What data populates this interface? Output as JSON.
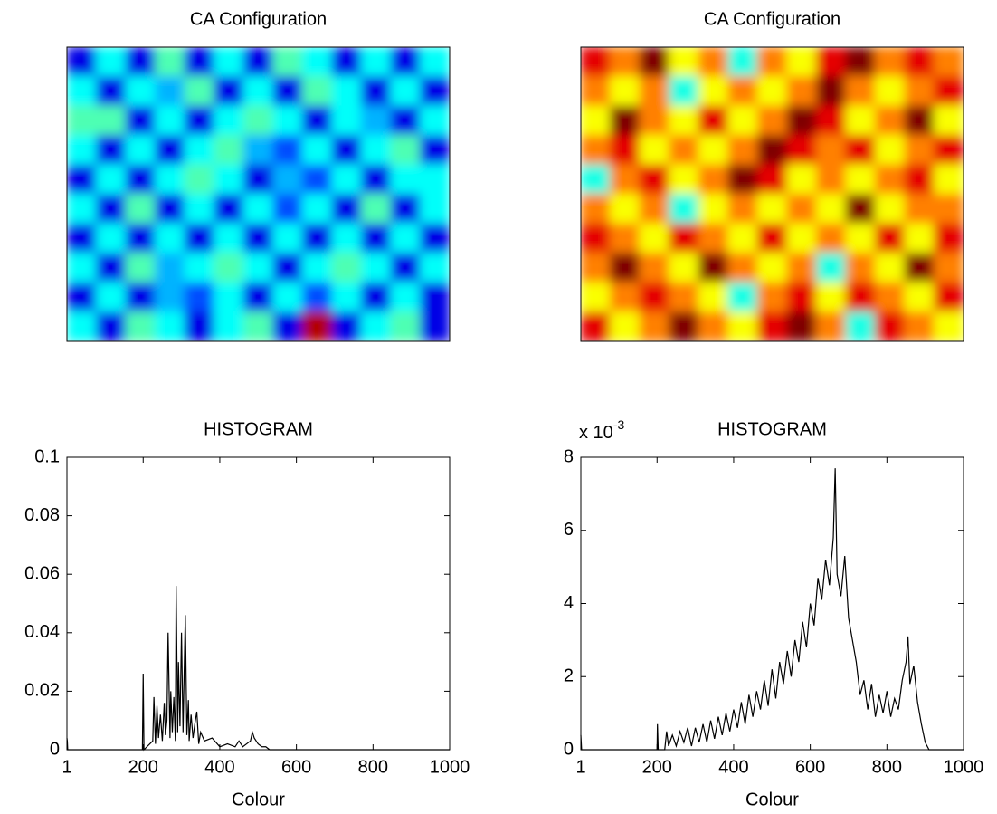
{
  "chart_data": [
    {
      "type": "image",
      "title": "CA Configuration",
      "colormap": "jet",
      "clim": [
        0,
        1
      ],
      "values": [
        [
          0.1,
          0.38,
          0.1,
          0.45,
          0.1,
          0.38,
          0.1,
          0.45,
          0.38,
          0.1,
          0.38,
          0.1,
          0.38
        ],
        [
          0.38,
          0.1,
          0.38,
          0.3,
          0.45,
          0.1,
          0.38,
          0.1,
          0.45,
          0.38,
          0.1,
          0.38,
          0.1
        ],
        [
          0.45,
          0.45,
          0.1,
          0.38,
          0.1,
          0.38,
          0.45,
          0.38,
          0.1,
          0.38,
          0.3,
          0.1,
          0.38
        ],
        [
          0.38,
          0.1,
          0.38,
          0.1,
          0.38,
          0.45,
          0.3,
          0.2,
          0.38,
          0.1,
          0.38,
          0.45,
          0.1
        ],
        [
          0.1,
          0.38,
          0.1,
          0.38,
          0.45,
          0.38,
          0.1,
          0.3,
          0.2,
          0.38,
          0.1,
          0.38,
          0.38
        ],
        [
          0.38,
          0.1,
          0.45,
          0.1,
          0.38,
          0.1,
          0.38,
          0.2,
          0.38,
          0.1,
          0.45,
          0.1,
          0.38
        ],
        [
          0.1,
          0.38,
          0.1,
          0.38,
          0.1,
          0.38,
          0.1,
          0.38,
          0.1,
          0.38,
          0.1,
          0.38,
          0.1
        ],
        [
          0.38,
          0.1,
          0.45,
          0.3,
          0.38,
          0.45,
          0.38,
          0.1,
          0.38,
          0.45,
          0.38,
          0.1,
          0.38
        ],
        [
          0.1,
          0.38,
          0.1,
          0.3,
          0.2,
          0.38,
          0.1,
          0.38,
          0.2,
          0.38,
          0.1,
          0.38,
          0.1
        ],
        [
          0.38,
          0.1,
          0.45,
          0.38,
          0.1,
          0.38,
          0.45,
          0.1,
          0.95,
          0.1,
          0.38,
          0.45,
          0.1
        ]
      ]
    },
    {
      "type": "image",
      "title": "CA Configuration",
      "colormap": "jet",
      "clim": [
        0,
        1
      ],
      "values": [
        [
          0.9,
          0.75,
          1,
          0.62,
          0.75,
          0.4,
          0.75,
          0.62,
          0.9,
          1,
          0.75,
          0.9,
          0.75
        ],
        [
          0.75,
          0.62,
          0.75,
          0.4,
          0.62,
          0.75,
          0.62,
          0.75,
          1,
          0.75,
          0.62,
          0.75,
          0.9
        ],
        [
          0.62,
          1,
          0.75,
          0.62,
          0.9,
          0.62,
          0.75,
          1,
          0.9,
          0.62,
          0.75,
          1,
          0.62
        ],
        [
          0.75,
          0.9,
          0.62,
          0.75,
          0.62,
          0.75,
          1,
          0.9,
          0.75,
          0.9,
          0.62,
          0.75,
          0.9
        ],
        [
          0.4,
          0.75,
          0.9,
          0.62,
          0.75,
          1,
          0.9,
          0.62,
          0.75,
          0.62,
          0.75,
          0.9,
          0.62
        ],
        [
          0.75,
          0.62,
          0.75,
          0.4,
          0.62,
          0.75,
          0.62,
          0.75,
          0.62,
          1,
          0.62,
          0.75,
          0.75
        ],
        [
          0.9,
          0.75,
          0.62,
          0.9,
          0.75,
          0.62,
          0.9,
          0.62,
          0.75,
          0.62,
          0.9,
          0.62,
          0.9
        ],
        [
          0.75,
          1,
          0.75,
          0.62,
          1,
          0.75,
          0.62,
          0.75,
          0.4,
          0.75,
          0.62,
          1,
          0.75
        ],
        [
          0.62,
          0.75,
          0.9,
          0.75,
          0.62,
          0.4,
          0.75,
          0.9,
          0.62,
          0.9,
          0.75,
          0.62,
          0.9
        ],
        [
          0.9,
          0.62,
          0.75,
          1,
          0.75,
          0.62,
          0.9,
          1,
          0.75,
          0.4,
          0.9,
          0.75,
          0.62
        ]
      ]
    },
    {
      "type": "line",
      "title": "HISTOGRAM",
      "x_label": "Colour",
      "color": "#000000",
      "x": [
        1,
        2,
        3,
        5,
        195,
        198,
        200,
        202,
        225,
        228,
        232,
        236,
        240,
        245,
        250,
        255,
        258,
        262,
        265,
        270,
        272,
        276,
        280,
        284,
        286,
        290,
        292,
        296,
        300,
        304,
        306,
        310,
        314,
        318,
        320,
        325,
        330,
        335,
        340,
        345,
        350,
        360,
        380,
        400,
        420,
        440,
        450,
        460,
        470,
        480,
        485,
        490,
        500,
        510,
        520,
        530,
        540,
        1000
      ],
      "values": [
        0.004,
        0.003,
        0,
        0,
        0,
        0,
        0.026,
        0,
        0.003,
        0.018,
        0.002,
        0.015,
        0.004,
        0.012,
        0.003,
        0.016,
        0.005,
        0.01,
        0.04,
        0.004,
        0.02,
        0.006,
        0.018,
        0.003,
        0.056,
        0.006,
        0.03,
        0.008,
        0.04,
        0.006,
        0.02,
        0.046,
        0.005,
        0.017,
        0.003,
        0.012,
        0.004,
        0.009,
        0.013,
        0.002,
        0.006,
        0.003,
        0.004,
        0.001,
        0.002,
        0.001,
        0.003,
        0.001,
        0.002,
        0.003,
        0.006,
        0.004,
        0.002,
        0.001,
        0.001,
        0,
        0,
        0
      ],
      "xlim": [
        1,
        1000
      ],
      "xticks": [
        1,
        200,
        400,
        600,
        800,
        1000
      ],
      "ylim": [
        0,
        0.1
      ],
      "yticks": [
        0,
        0.02,
        0.04,
        0.06,
        0.08,
        0.1
      ]
    },
    {
      "type": "line",
      "title": "HISTOGRAM",
      "x_label": "Colour",
      "color": "#000000",
      "x": [
        1,
        3,
        200,
        201,
        203,
        220,
        225,
        230,
        240,
        250,
        260,
        270,
        280,
        290,
        300,
        310,
        320,
        330,
        340,
        350,
        360,
        370,
        380,
        390,
        400,
        410,
        420,
        430,
        440,
        450,
        460,
        470,
        480,
        490,
        500,
        510,
        520,
        530,
        540,
        550,
        560,
        570,
        580,
        590,
        600,
        610,
        620,
        630,
        640,
        650,
        660,
        665,
        670,
        680,
        690,
        700,
        710,
        720,
        730,
        740,
        750,
        760,
        770,
        780,
        790,
        800,
        810,
        820,
        830,
        840,
        850,
        855,
        860,
        870,
        880,
        890,
        900,
        910,
        1000
      ],
      "values": [
        0.0004,
        0,
        0,
        0.0007,
        0,
        0,
        0.0005,
        0.0001,
        0.0004,
        0.0001,
        0.0005,
        0.0002,
        0.0006,
        0.0001,
        0.0006,
        0.0002,
        0.0007,
        0.0002,
        0.0008,
        0.0003,
        0.0009,
        0.0004,
        0.001,
        0.0005,
        0.0011,
        0.0006,
        0.0013,
        0.0007,
        0.0015,
        0.0009,
        0.0016,
        0.0011,
        0.0019,
        0.0012,
        0.0022,
        0.0014,
        0.0024,
        0.0018,
        0.0027,
        0.002,
        0.003,
        0.0024,
        0.0035,
        0.0028,
        0.004,
        0.0034,
        0.0047,
        0.0041,
        0.0052,
        0.0045,
        0.0058,
        0.0077,
        0.0048,
        0.0042,
        0.0053,
        0.0036,
        0.003,
        0.0024,
        0.0015,
        0.0019,
        0.0011,
        0.0018,
        0.0009,
        0.0015,
        0.001,
        0.0016,
        0.0009,
        0.0014,
        0.0011,
        0.0019,
        0.0024,
        0.0031,
        0.0018,
        0.0023,
        0.0013,
        0.0007,
        0.0002,
        0,
        0
      ],
      "xlim": [
        1,
        1000
      ],
      "xticks": [
        1,
        200,
        400,
        600,
        800,
        1000
      ],
      "ylim": [
        0,
        0.008
      ],
      "yticks": [
        {
          "value": 0,
          "label": "0"
        },
        {
          "value": 0.002,
          "label": "2"
        },
        {
          "value": 0.004,
          "label": "4"
        },
        {
          "value": 0.006,
          "label": "6"
        },
        {
          "value": 0.008,
          "label": "8"
        }
      ],
      "y_exponent": {
        "base": "x 10",
        "power": "-3"
      }
    }
  ]
}
